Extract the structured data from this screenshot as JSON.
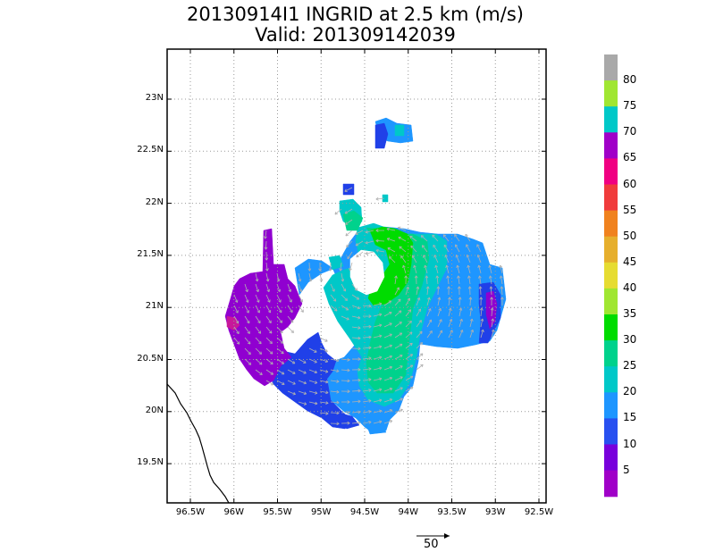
{
  "header": {
    "title_line1": "20130914I1 INGRID at 2.5 km (m/s)",
    "title_line2": "Valid: 201309142039"
  },
  "map": {
    "lat_labels": [
      "23N",
      "22.5N",
      "22N",
      "21.5N",
      "21N",
      "20.5N",
      "20N",
      "19.5N"
    ],
    "lon_labels": [
      "96.5W",
      "96W",
      "95.5W",
      "95W",
      "94.5W",
      "94W",
      "93.5W",
      "93W",
      "92.5W"
    ],
    "gridlines": true
  },
  "colorbar": {
    "labels": [
      "80",
      "75",
      "70",
      "65",
      "60",
      "55",
      "50",
      "45",
      "40",
      "35",
      "30",
      "25",
      "20",
      "15",
      "10",
      "5"
    ],
    "colors": [
      "#a9a9a9",
      "#a0e632",
      "#00c8c8",
      "#a000c8",
      "#f00082",
      "#f03c3c",
      "#f0821e",
      "#e6af2d",
      "#e6dc32",
      "#a0e632",
      "#00dc00",
      "#00d28c",
      "#00c8c8",
      "#1e96ff",
      "#2850f0",
      "#7800dc",
      "#a000c8"
    ]
  },
  "wind_field_colors": {
    "purple": "#9000d0",
    "magenta": "#c8189a",
    "blue": "#2040e8",
    "light_blue": "#1e96ff",
    "cyan": "#00c8c8",
    "teal": "#00d28c",
    "green": "#00dc00",
    "vector": "#b0b0b0"
  },
  "vector_reference": {
    "label": "50"
  }
}
